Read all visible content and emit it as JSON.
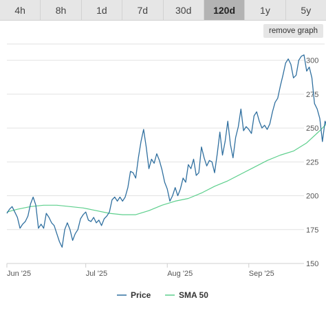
{
  "ranges": {
    "tabs": [
      "4h",
      "8h",
      "1d",
      "7d",
      "30d",
      "120d",
      "1y",
      "5y"
    ],
    "active": "120d"
  },
  "toolbar": {
    "remove_label": "remove graph"
  },
  "colors": {
    "price": "#2f6f9f",
    "sma": "#5ccf8c",
    "grid": "#e2e2e2"
  },
  "chart_data": {
    "type": "line",
    "title": "",
    "xlabel": "",
    "ylabel": "",
    "x_tick_labels": [
      {
        "label": "Jun '25",
        "date": "2025-06-01"
      },
      {
        "label": "Jul '25",
        "date": "2025-07-01"
      },
      {
        "label": "Aug '25",
        "date": "2025-08-01"
      },
      {
        "label": "Sep '25",
        "date": "2025-09-01"
      }
    ],
    "xlim": [
      "2025-06-01",
      "2025-09-30"
    ],
    "ylim": [
      150,
      312
    ],
    "y_ticks": [
      150,
      175,
      200,
      225,
      250,
      275,
      300
    ],
    "y_axis_side": "right",
    "grid": true,
    "legend": "bottom-center",
    "series": [
      {
        "name": "Price",
        "points": [
          [
            "2025-06-01",
            187
          ],
          [
            "2025-06-02",
            190
          ],
          [
            "2025-06-03",
            192
          ],
          [
            "2025-06-04",
            188
          ],
          [
            "2025-06-05",
            184
          ],
          [
            "2025-06-06",
            176
          ],
          [
            "2025-06-07",
            179
          ],
          [
            "2025-06-08",
            181
          ],
          [
            "2025-06-09",
            185
          ],
          [
            "2025-06-10",
            194
          ],
          [
            "2025-06-11",
            199
          ],
          [
            "2025-06-12",
            193
          ],
          [
            "2025-06-13",
            176
          ],
          [
            "2025-06-14",
            179
          ],
          [
            "2025-06-15",
            176
          ],
          [
            "2025-06-16",
            187
          ],
          [
            "2025-06-17",
            184
          ],
          [
            "2025-06-18",
            180
          ],
          [
            "2025-06-19",
            178
          ],
          [
            "2025-06-20",
            172
          ],
          [
            "2025-06-21",
            166
          ],
          [
            "2025-06-22",
            162
          ],
          [
            "2025-06-23",
            175
          ],
          [
            "2025-06-24",
            180
          ],
          [
            "2025-06-25",
            175
          ],
          [
            "2025-06-26",
            167
          ],
          [
            "2025-06-27",
            172
          ],
          [
            "2025-06-28",
            175
          ],
          [
            "2025-06-29",
            183
          ],
          [
            "2025-06-30",
            186
          ],
          [
            "2025-07-01",
            188
          ],
          [
            "2025-07-02",
            182
          ],
          [
            "2025-07-03",
            181
          ],
          [
            "2025-07-04",
            184
          ],
          [
            "2025-07-05",
            180
          ],
          [
            "2025-07-06",
            182
          ],
          [
            "2025-07-07",
            178
          ],
          [
            "2025-07-08",
            183
          ],
          [
            "2025-07-09",
            185
          ],
          [
            "2025-07-10",
            188
          ],
          [
            "2025-07-11",
            197
          ],
          [
            "2025-07-12",
            199
          ],
          [
            "2025-07-13",
            196
          ],
          [
            "2025-07-14",
            199
          ],
          [
            "2025-07-15",
            196
          ],
          [
            "2025-07-16",
            199
          ],
          [
            "2025-07-17",
            206
          ],
          [
            "2025-07-18",
            218
          ],
          [
            "2025-07-19",
            217
          ],
          [
            "2025-07-20",
            213
          ],
          [
            "2025-07-21",
            228
          ],
          [
            "2025-07-22",
            240
          ],
          [
            "2025-07-23",
            249
          ],
          [
            "2025-07-24",
            236
          ],
          [
            "2025-07-25",
            220
          ],
          [
            "2025-07-26",
            227
          ],
          [
            "2025-07-27",
            224
          ],
          [
            "2025-07-28",
            231
          ],
          [
            "2025-07-29",
            226
          ],
          [
            "2025-07-30",
            219
          ],
          [
            "2025-07-31",
            210
          ],
          [
            "2025-08-01",
            205
          ],
          [
            "2025-08-02",
            196
          ],
          [
            "2025-08-03",
            200
          ],
          [
            "2025-08-04",
            206
          ],
          [
            "2025-08-05",
            200
          ],
          [
            "2025-08-06",
            205
          ],
          [
            "2025-08-07",
            213
          ],
          [
            "2025-08-08",
            210
          ],
          [
            "2025-08-09",
            223
          ],
          [
            "2025-08-10",
            220
          ],
          [
            "2025-08-11",
            227
          ],
          [
            "2025-08-12",
            215
          ],
          [
            "2025-08-13",
            217
          ],
          [
            "2025-08-14",
            236
          ],
          [
            "2025-08-15",
            228
          ],
          [
            "2025-08-16",
            222
          ],
          [
            "2025-08-17",
            226
          ],
          [
            "2025-08-18",
            225
          ],
          [
            "2025-08-19",
            217
          ],
          [
            "2025-08-20",
            231
          ],
          [
            "2025-08-21",
            247
          ],
          [
            "2025-08-22",
            230
          ],
          [
            "2025-08-23",
            240
          ],
          [
            "2025-08-24",
            255
          ],
          [
            "2025-08-25",
            238
          ],
          [
            "2025-08-26",
            228
          ],
          [
            "2025-08-27",
            243
          ],
          [
            "2025-08-28",
            251
          ],
          [
            "2025-08-29",
            264
          ],
          [
            "2025-08-30",
            248
          ],
          [
            "2025-08-31",
            251
          ],
          [
            "2025-09-01",
            249
          ],
          [
            "2025-09-02",
            246
          ],
          [
            "2025-09-03",
            259
          ],
          [
            "2025-09-04",
            262
          ],
          [
            "2025-09-05",
            255
          ],
          [
            "2025-09-06",
            250
          ],
          [
            "2025-09-07",
            252
          ],
          [
            "2025-09-08",
            249
          ],
          [
            "2025-09-09",
            253
          ],
          [
            "2025-09-10",
            262
          ],
          [
            "2025-09-11",
            269
          ],
          [
            "2025-09-12",
            272
          ],
          [
            "2025-09-13",
            281
          ],
          [
            "2025-09-14",
            289
          ],
          [
            "2025-09-15",
            298
          ],
          [
            "2025-09-16",
            301
          ],
          [
            "2025-09-17",
            297
          ],
          [
            "2025-09-18",
            287
          ],
          [
            "2025-09-19",
            289
          ],
          [
            "2025-09-20",
            300
          ],
          [
            "2025-09-21",
            303
          ],
          [
            "2025-09-22",
            304
          ],
          [
            "2025-09-23",
            292
          ],
          [
            "2025-09-24",
            295
          ],
          [
            "2025-09-25",
            287
          ],
          [
            "2025-09-26",
            268
          ],
          [
            "2025-09-27",
            264
          ],
          [
            "2025-09-28",
            257
          ],
          [
            "2025-09-29",
            240
          ],
          [
            "2025-09-30",
            255
          ],
          [
            "2025-10-01",
            250
          ],
          [
            "2025-10-02",
            257
          ]
        ]
      },
      {
        "name": "SMA 50",
        "points": [
          [
            "2025-06-01",
            188
          ],
          [
            "2025-06-05",
            190
          ],
          [
            "2025-06-10",
            192
          ],
          [
            "2025-06-15",
            193
          ],
          [
            "2025-06-20",
            193
          ],
          [
            "2025-06-25",
            192
          ],
          [
            "2025-06-30",
            191
          ],
          [
            "2025-07-05",
            189
          ],
          [
            "2025-07-10",
            187
          ],
          [
            "2025-07-15",
            186
          ],
          [
            "2025-07-20",
            186
          ],
          [
            "2025-07-25",
            189
          ],
          [
            "2025-07-30",
            193
          ],
          [
            "2025-08-04",
            196
          ],
          [
            "2025-08-09",
            198
          ],
          [
            "2025-08-14",
            202
          ],
          [
            "2025-08-19",
            207
          ],
          [
            "2025-08-24",
            211
          ],
          [
            "2025-08-29",
            216
          ],
          [
            "2025-09-03",
            221
          ],
          [
            "2025-09-08",
            226
          ],
          [
            "2025-09-13",
            230
          ],
          [
            "2025-09-18",
            233
          ],
          [
            "2025-09-23",
            239
          ],
          [
            "2025-09-28",
            248
          ],
          [
            "2025-10-02",
            256
          ]
        ]
      }
    ]
  }
}
